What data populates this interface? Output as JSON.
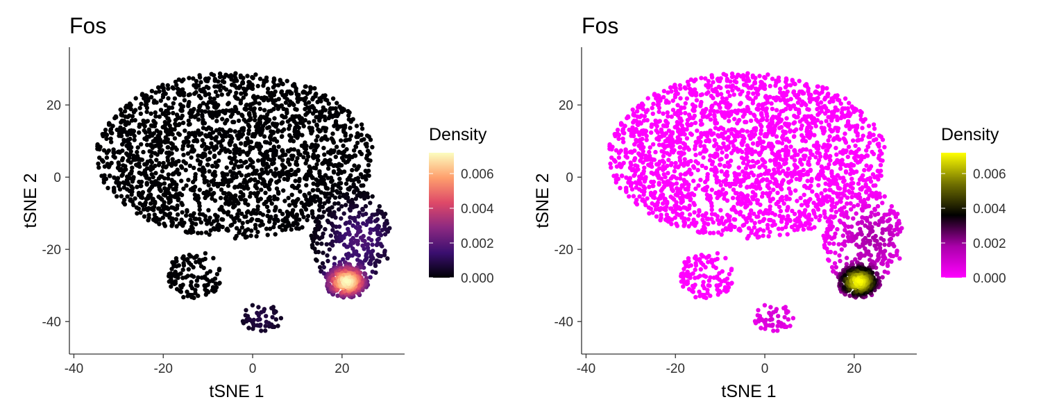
{
  "chart_data": [
    {
      "type": "scatter",
      "title": "Fos",
      "xlabel": "tSNE 1",
      "ylabel": "tSNE 2",
      "xlim": [
        -41,
        34
      ],
      "ylim": [
        -49,
        36
      ],
      "xticks": [
        -40,
        -20,
        0,
        20
      ],
      "xtick_labels": [
        "-40",
        "-20",
        "0",
        "20"
      ],
      "yticks": [
        -40,
        -20,
        0,
        20
      ],
      "ytick_labels": [
        "-40",
        "-20",
        "0",
        "20"
      ],
      "color_variable": "Density",
      "legend": {
        "title": "Density",
        "position": "right",
        "range": [
          0,
          0.0072
        ],
        "ticks": [
          0.0,
          0.002,
          0.004,
          0.006
        ],
        "tick_labels": [
          "0.000",
          "0.002",
          "0.004",
          "0.006"
        ],
        "colors": [
          "#000004",
          "#3b0f70",
          "#8c2981",
          "#de4968",
          "#fe9f6d",
          "#fcfdbf"
        ]
      },
      "hotspot": {
        "x": 21,
        "y": -29,
        "peak_density": 0.0071
      },
      "grid": false
    },
    {
      "type": "scatter",
      "title": "Fos",
      "xlabel": "tSNE 1",
      "ylabel": "tSNE 2",
      "xlim": [
        -41,
        34
      ],
      "ylim": [
        -49,
        36
      ],
      "xticks": [
        -40,
        -20,
        0,
        20
      ],
      "xtick_labels": [
        "-40",
        "-20",
        "0",
        "20"
      ],
      "yticks": [
        -40,
        -20,
        0,
        20
      ],
      "ytick_labels": [
        "-40",
        "-20",
        "0",
        "20"
      ],
      "color_variable": "Density",
      "legend": {
        "title": "Density",
        "position": "right",
        "range": [
          0,
          0.0072
        ],
        "ticks": [
          0.0,
          0.002,
          0.004,
          0.006
        ],
        "tick_labels": [
          "0.000",
          "0.002",
          "0.004",
          "0.006"
        ],
        "colors": [
          "#ff00ff",
          "#aa00aa",
          "#000000",
          "#707000",
          "#ffff00"
        ]
      },
      "hotspot": {
        "x": 21,
        "y": -29,
        "peak_density": 0.0071
      },
      "grid": false
    }
  ]
}
